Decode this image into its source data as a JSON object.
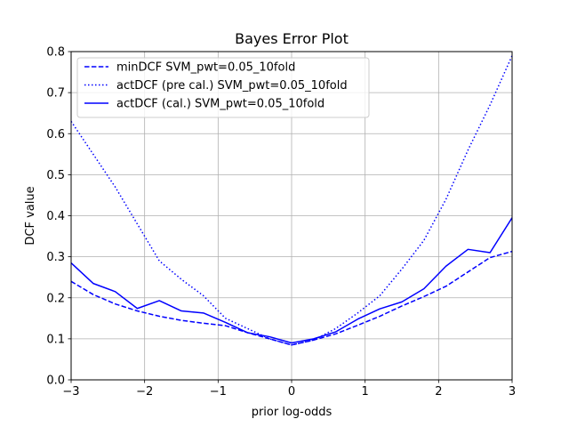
{
  "chart_data": {
    "type": "line",
    "title": "Bayes Error Plot",
    "xlabel": "prior log-odds",
    "ylabel": "DCF value",
    "xlim": [
      -3,
      3
    ],
    "ylim": [
      0,
      0.8
    ],
    "xticks": [
      -3,
      -2,
      -1,
      0,
      1,
      2,
      3
    ],
    "xtick_labels": [
      "−3",
      "−2",
      "−1",
      "0",
      "1",
      "2",
      "3"
    ],
    "yticks": [
      0,
      0.1,
      0.2,
      0.3,
      0.4,
      0.5,
      0.6,
      0.7,
      0.8
    ],
    "ytick_labels": [
      "0.0",
      "0.1",
      "0.2",
      "0.3",
      "0.4",
      "0.5",
      "0.6",
      "0.7",
      "0.8"
    ],
    "grid": true,
    "legend_position": "top-left",
    "series": [
      {
        "name": "minDCF SVM_pwt=0.05_10fold",
        "style": "dashed",
        "color": "#0000ff",
        "x": [
          -3,
          -2.7,
          -2.4,
          -2.1,
          -1.8,
          -1.5,
          -1.2,
          -0.9,
          -0.6,
          -0.3,
          0,
          0.3,
          0.6,
          0.9,
          1.2,
          1.5,
          1.8,
          2.1,
          2.4,
          2.7,
          3
        ],
        "y": [
          0.24,
          0.208,
          0.185,
          0.168,
          0.155,
          0.145,
          0.138,
          0.132,
          0.115,
          0.1,
          0.085,
          0.097,
          0.112,
          0.133,
          0.155,
          0.18,
          0.203,
          0.228,
          0.263,
          0.298,
          0.313
        ]
      },
      {
        "name": "actDCF (pre cal.) SVM_pwt=0.05_10fold",
        "style": "dotted",
        "color": "#0000ff",
        "x": [
          -3,
          -2.7,
          -2.4,
          -2.1,
          -1.8,
          -1.5,
          -1.2,
          -0.9,
          -0.6,
          -0.3,
          0,
          0.3,
          0.6,
          0.9,
          1.2,
          1.5,
          1.8,
          2.1,
          2.4,
          2.7,
          3
        ],
        "y": [
          0.63,
          0.55,
          0.47,
          0.38,
          0.29,
          0.245,
          0.205,
          0.15,
          0.125,
          0.1,
          0.085,
          0.097,
          0.125,
          0.163,
          0.205,
          0.27,
          0.34,
          0.44,
          0.56,
          0.67,
          0.79
        ]
      },
      {
        "name": "actDCF (cal.) SVM_pwt=0.05_10fold",
        "style": "solid",
        "color": "#0000ff",
        "x": [
          -3,
          -2.7,
          -2.4,
          -2.1,
          -1.8,
          -1.5,
          -1.2,
          -0.9,
          -0.6,
          -0.3,
          0,
          0.3,
          0.6,
          0.9,
          1.2,
          1.5,
          1.8,
          2.1,
          2.4,
          2.7,
          3
        ],
        "y": [
          0.285,
          0.235,
          0.215,
          0.174,
          0.193,
          0.168,
          0.163,
          0.14,
          0.115,
          0.105,
          0.09,
          0.1,
          0.117,
          0.148,
          0.173,
          0.19,
          0.222,
          0.277,
          0.318,
          0.31,
          0.395
        ]
      }
    ]
  }
}
